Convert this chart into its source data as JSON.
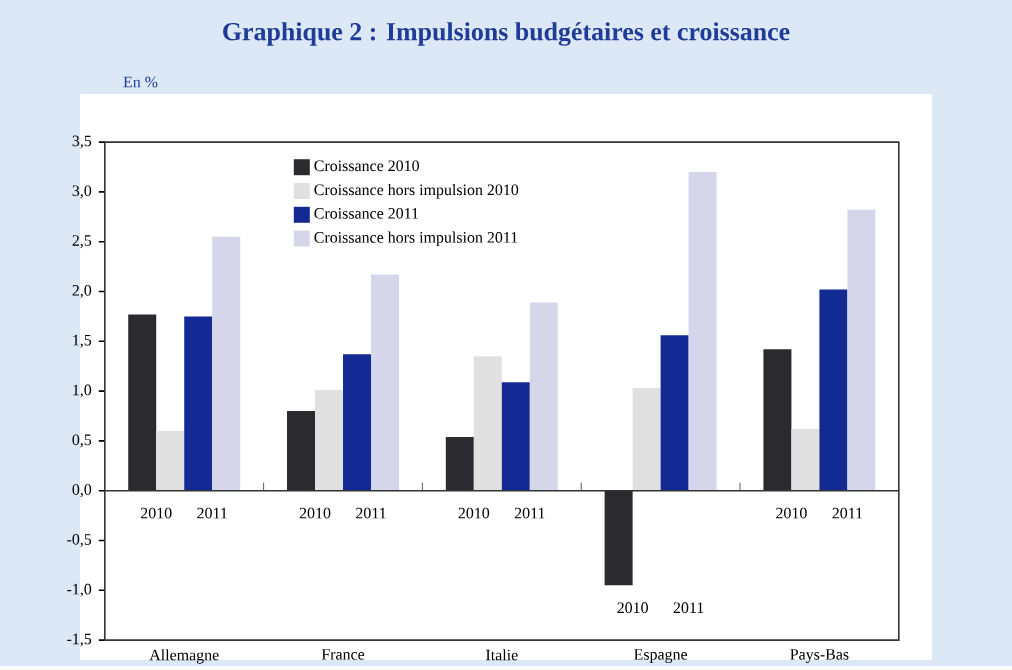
{
  "chart_data": {
    "type": "bar",
    "title": "Graphique 2 : Impulsions budgétaires et croissance",
    "ylabel": "En %",
    "categories": [
      "Allemagne",
      "France",
      "Italie",
      "Espagne",
      "Pays-Bas"
    ],
    "series": [
      {
        "name": "Croissance 2010",
        "color": "#2b2b2f",
        "values": [
          1.77,
          0.8,
          0.54,
          -0.95,
          1.42
        ]
      },
      {
        "name": "Croissance hors impulsion 2010",
        "color": "#e0e0e0",
        "values": [
          0.6,
          1.01,
          1.35,
          1.03,
          0.62
        ]
      },
      {
        "name": "Croissance 2011",
        "color": "#132a94",
        "values": [
          1.75,
          1.37,
          1.09,
          1.56,
          2.02
        ]
      },
      {
        "name": "Croissance hors impulsion 2011",
        "color": "#d5d6ea",
        "values": [
          2.55,
          2.17,
          1.89,
          3.2,
          2.82
        ]
      }
    ],
    "ylim": [
      -1.5,
      3.5
    ],
    "yticks": [
      {
        "value": -1.5,
        "label": "-1,5"
      },
      {
        "value": -1.0,
        "label": "-1,0"
      },
      {
        "value": -0.5,
        "label": "-0,5"
      },
      {
        "value": 0,
        "label": "0,0"
      },
      {
        "value": 0.5,
        "label": "0,5"
      },
      {
        "value": 1.0,
        "label": "1,0"
      },
      {
        "value": 1.5,
        "label": "1,5"
      },
      {
        "value": 2.0,
        "label": "2,0"
      },
      {
        "value": 2.5,
        "label": "2,5"
      },
      {
        "value": 3.0,
        "label": "3,0"
      },
      {
        "value": 3.5,
        "label": "3,5"
      }
    ],
    "legend": "top",
    "annotations": [
      "2010",
      "2011",
      "2010",
      "2011",
      "2010",
      "2011",
      "2010",
      "2011",
      "2010",
      "2011"
    ]
  }
}
